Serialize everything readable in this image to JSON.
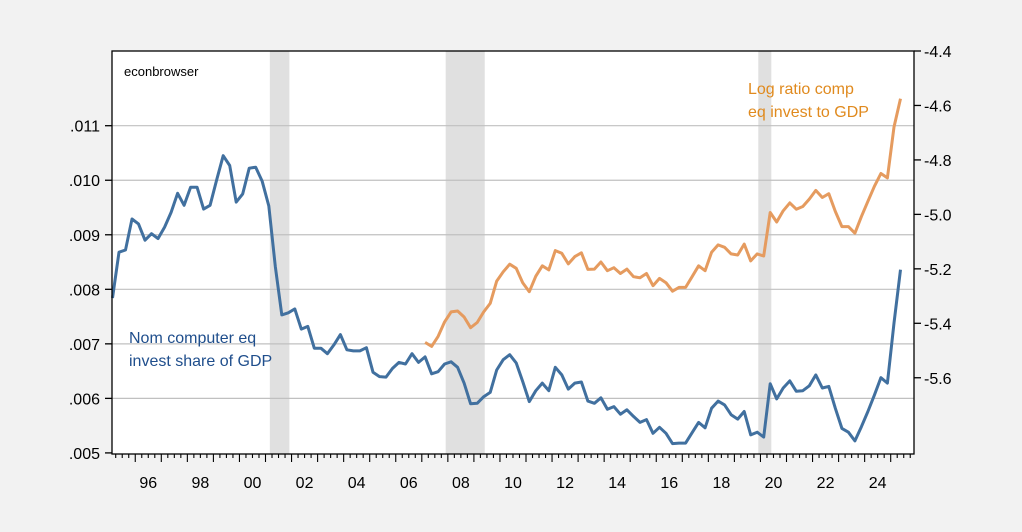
{
  "chart_data": {
    "type": "line",
    "title": "",
    "watermark": "econbrowser",
    "xlabel": "",
    "ylabel_left": "",
    "ylabel_right": "",
    "xlim": [
      1995.1,
      2026.0
    ],
    "x_tick_labels": [
      "96",
      "98",
      "00",
      "02",
      "04",
      "06",
      "08",
      "10",
      "12",
      "14",
      "16",
      "18",
      "20",
      "22",
      "24"
    ],
    "x_tick_years": [
      1996,
      1998,
      2000,
      2002,
      2004,
      2006,
      2008,
      2010,
      2012,
      2014,
      2016,
      2018,
      2020,
      2022,
      2024
    ],
    "left_axis": {
      "ylim": [
        0.00498,
        0.01237
      ],
      "ticks": [
        0.005,
        0.006,
        0.007,
        0.008,
        0.009,
        0.01,
        0.011
      ],
      "tick_labels": [
        ".005",
        ".006",
        ".007",
        ".008",
        ".009",
        ".010",
        ".011"
      ],
      "grid": true
    },
    "right_axis": {
      "ylim": [
        -5.88,
        -4.4
      ],
      "ticks": [
        -5.6,
        -5.4,
        -5.2,
        -5.0,
        -4.8,
        -4.6,
        -4.4
      ],
      "tick_labels": [
        "-5.6",
        "-5.4",
        "-5.2",
        "-5.0",
        "-4.8",
        "-4.6",
        "-4.4"
      ]
    },
    "recessions": [
      [
        2001.167,
        2001.917
      ],
      [
        2007.917,
        2009.417
      ],
      [
        2019.917,
        2020.417
      ]
    ],
    "series": [
      {
        "name": "Nom computer eq invest share of GDP",
        "label_lines": [
          "Nom computer eq",
          "invest share of GDP"
        ],
        "axis": "left",
        "color": "#41709f",
        "label_color": "#1f4e8c",
        "frequency": "quarterly",
        "start": 1995.0,
        "values": [
          0.00784,
          0.00868,
          0.00872,
          0.00929,
          0.0092,
          0.0089,
          0.00902,
          0.00893,
          0.00914,
          0.00941,
          0.00976,
          0.00954,
          0.00987,
          0.00987,
          0.00947,
          0.00954,
          0.01001,
          0.01045,
          0.01027,
          0.0096,
          0.00975,
          0.01022,
          0.01024,
          0.00998,
          0.00953,
          0.00842,
          0.00753,
          0.00757,
          0.00764,
          0.00727,
          0.00732,
          0.00692,
          0.00692,
          0.00682,
          0.00698,
          0.00717,
          0.00689,
          0.00687,
          0.00687,
          0.00693,
          0.00648,
          0.0064,
          0.00639,
          0.00655,
          0.00666,
          0.00663,
          0.00682,
          0.00666,
          0.00676,
          0.00645,
          0.00649,
          0.00663,
          0.00667,
          0.00657,
          0.00628,
          0.0059,
          0.00591,
          0.00603,
          0.00611,
          0.00652,
          0.00671,
          0.0068,
          0.00665,
          0.00631,
          0.00594,
          0.00614,
          0.00628,
          0.00614,
          0.00657,
          0.00643,
          0.00617,
          0.00628,
          0.0063,
          0.00595,
          0.00591,
          0.00601,
          0.0058,
          0.00585,
          0.00571,
          0.00579,
          0.00567,
          0.00556,
          0.00561,
          0.00536,
          0.00547,
          0.00536,
          0.00517,
          0.00518,
          0.00518,
          0.00537,
          0.00556,
          0.00546,
          0.00582,
          0.00595,
          0.00588,
          0.0057,
          0.00562,
          0.00576,
          0.00533,
          0.00538,
          0.00529,
          0.00627,
          0.00599,
          0.00619,
          0.00632,
          0.00613,
          0.00614,
          0.00623,
          0.00643,
          0.00619,
          0.00622,
          0.00582,
          0.00545,
          0.00538,
          0.00522,
          0.00548,
          0.00576,
          0.00606,
          0.00638,
          0.00628,
          0.00738,
          0.00836
        ]
      },
      {
        "name": "Log ratio comp eq invest to GDP",
        "label_lines": [
          "Log ratio comp",
          "eq invest to GDP"
        ],
        "axis": "right",
        "color": "#e59b5f",
        "label_color": "#e08a1e",
        "frequency": "quarterly",
        "start": 2007.0,
        "values": [
          -5.47,
          -5.485,
          -5.448,
          -5.395,
          -5.358,
          -5.355,
          -5.377,
          -5.416,
          -5.397,
          -5.358,
          -5.327,
          -5.245,
          -5.211,
          -5.183,
          -5.198,
          -5.251,
          -5.284,
          -5.227,
          -5.189,
          -5.204,
          -5.133,
          -5.143,
          -5.182,
          -5.155,
          -5.141,
          -5.202,
          -5.201,
          -5.175,
          -5.207,
          -5.196,
          -5.217,
          -5.201,
          -5.229,
          -5.233,
          -5.217,
          -5.262,
          -5.235,
          -5.251,
          -5.282,
          -5.268,
          -5.268,
          -5.229,
          -5.189,
          -5.207,
          -5.139,
          -5.112,
          -5.121,
          -5.145,
          -5.149,
          -5.109,
          -5.171,
          -5.145,
          -5.153,
          -4.993,
          -5.028,
          -4.987,
          -4.958,
          -4.981,
          -4.971,
          -4.944,
          -4.912,
          -4.938,
          -4.924,
          -4.989,
          -5.045,
          -5.045,
          -5.069,
          -5.008,
          -4.952,
          -4.897,
          -4.85,
          -4.866,
          -4.679,
          -4.575
        ]
      }
    ]
  }
}
